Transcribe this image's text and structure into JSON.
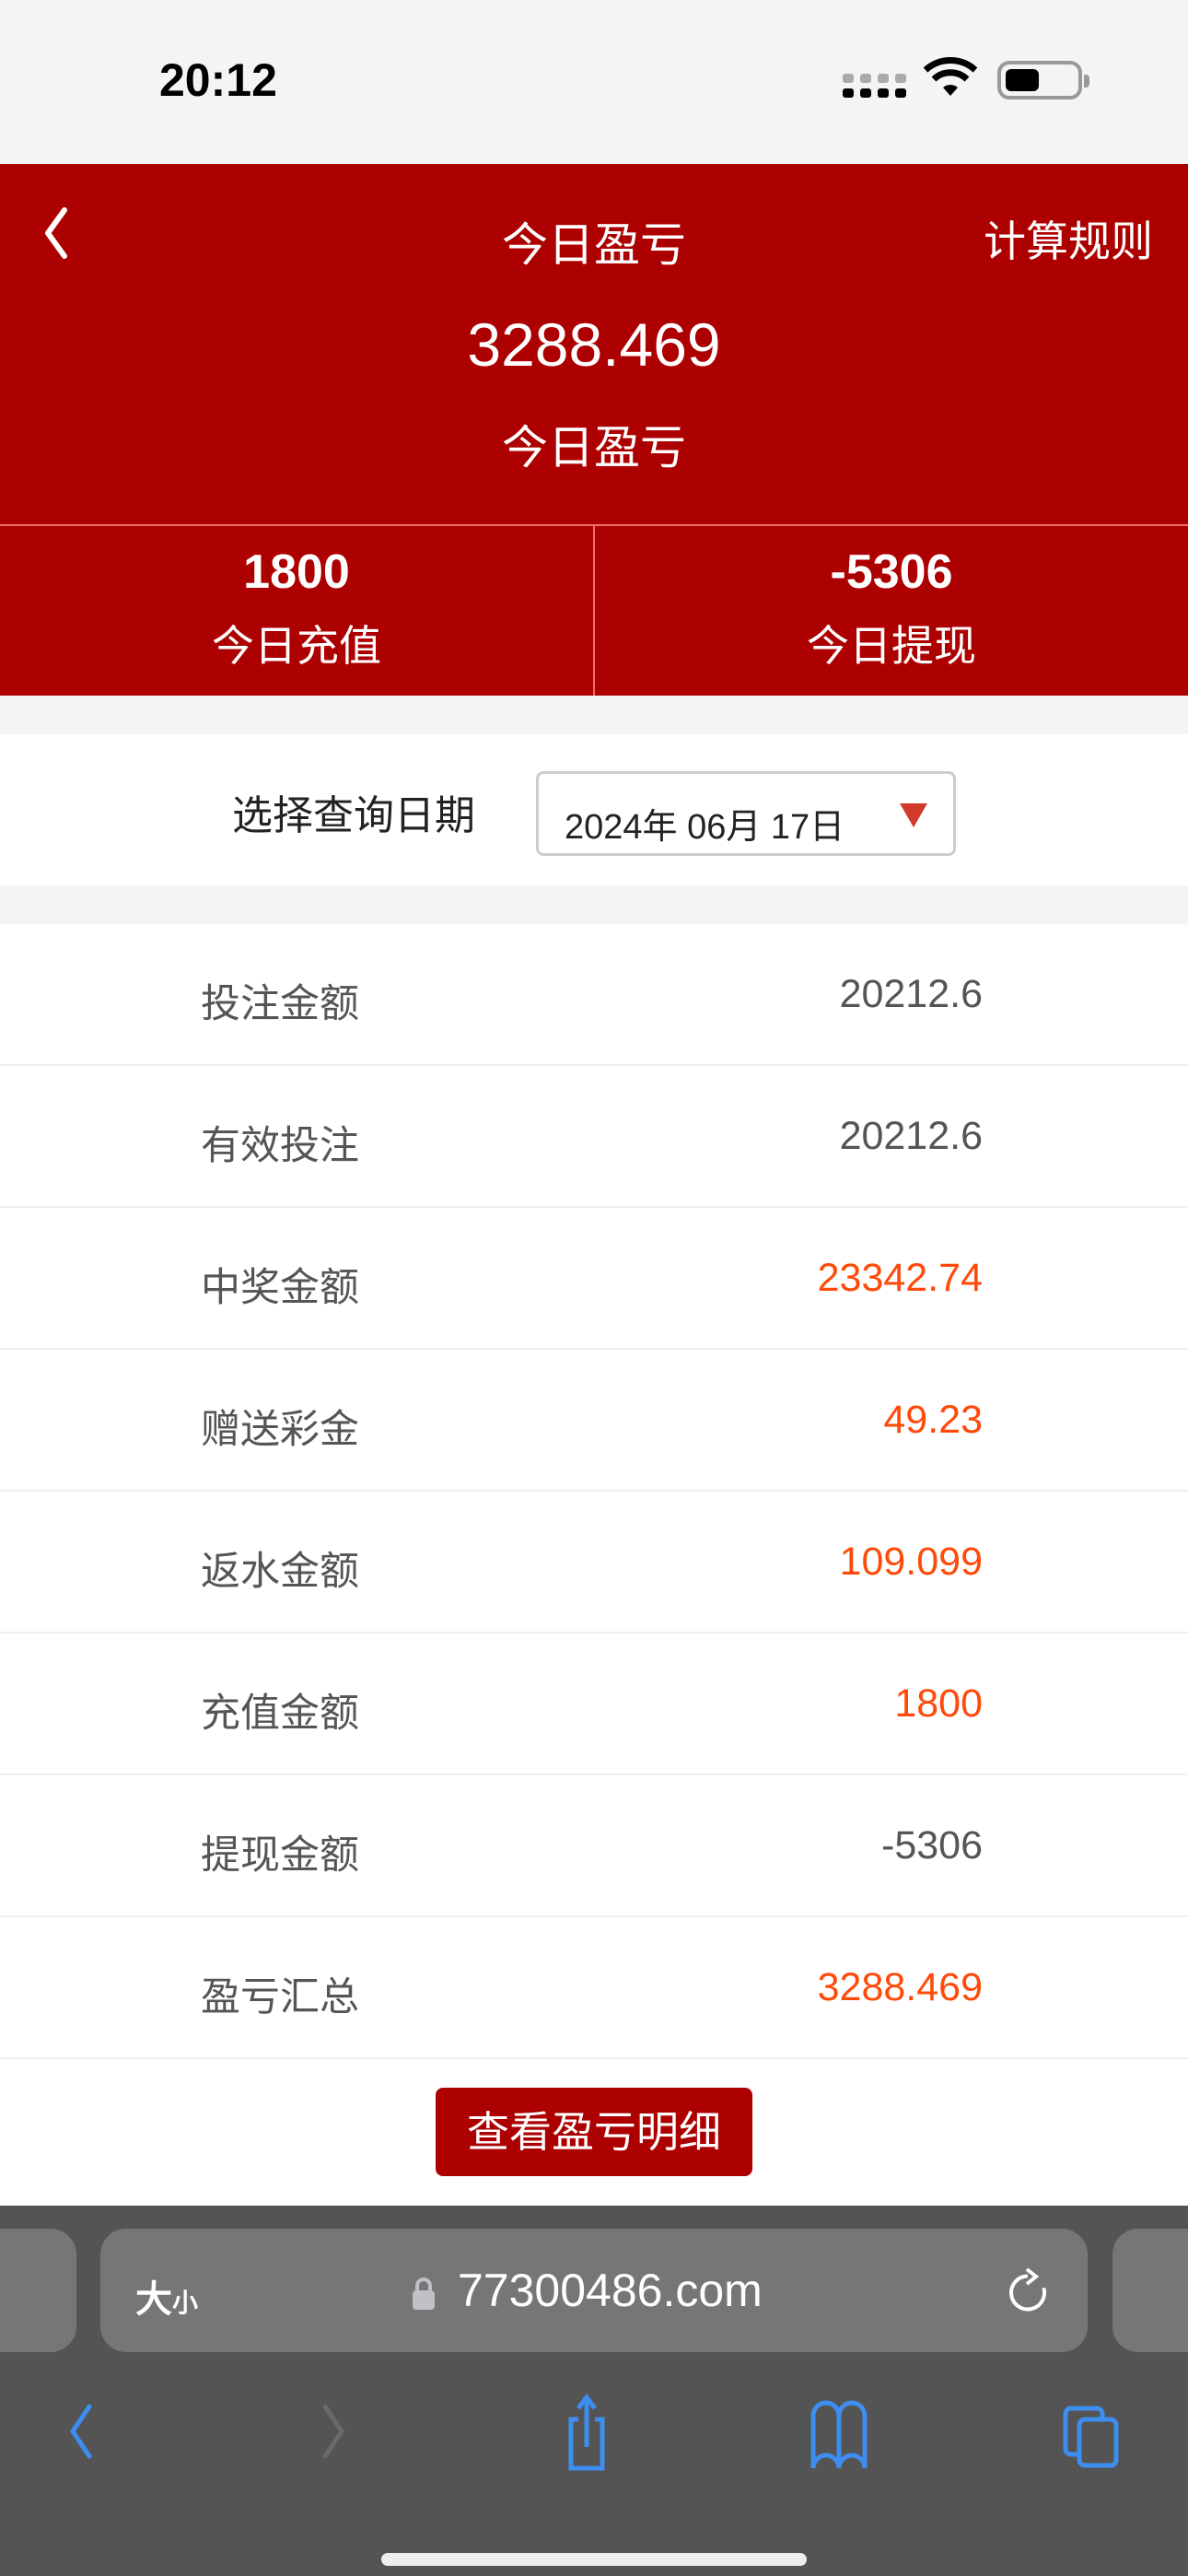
{
  "status_bar": {
    "time": "20:12"
  },
  "header": {
    "title": "今日盈亏",
    "rules_label": "计算规则",
    "profit_value": "3288.469",
    "profit_label": "今日盈亏",
    "stats": [
      {
        "value": "1800",
        "label": "今日充值"
      },
      {
        "value": "-5306",
        "label": "今日提现"
      }
    ]
  },
  "date_filter": {
    "label": "选择查询日期",
    "selected": "2024年 06月 17日"
  },
  "details": [
    {
      "label": "投注金额",
      "value": "20212.6",
      "highlight": false
    },
    {
      "label": "有效投注",
      "value": "20212.6",
      "highlight": false
    },
    {
      "label": "中奖金额",
      "value": "23342.74",
      "highlight": true
    },
    {
      "label": "赠送彩金",
      "value": "49.23",
      "highlight": true
    },
    {
      "label": "返水金额",
      "value": "109.099",
      "highlight": true
    },
    {
      "label": "充值金额",
      "value": "1800",
      "highlight": true
    },
    {
      "label": "提现金额",
      "value": "-5306",
      "highlight": false
    },
    {
      "label": "盈亏汇总",
      "value": "3288.469",
      "highlight": true
    }
  ],
  "detail_button": "查看盈亏明细",
  "browser": {
    "text_size_big": "大",
    "text_size_small": "小",
    "url": "77300486.com"
  },
  "colors": {
    "brand": "#ad0000",
    "highlight": "#ff4a0a",
    "browser_icons": "#3d8ef0"
  }
}
